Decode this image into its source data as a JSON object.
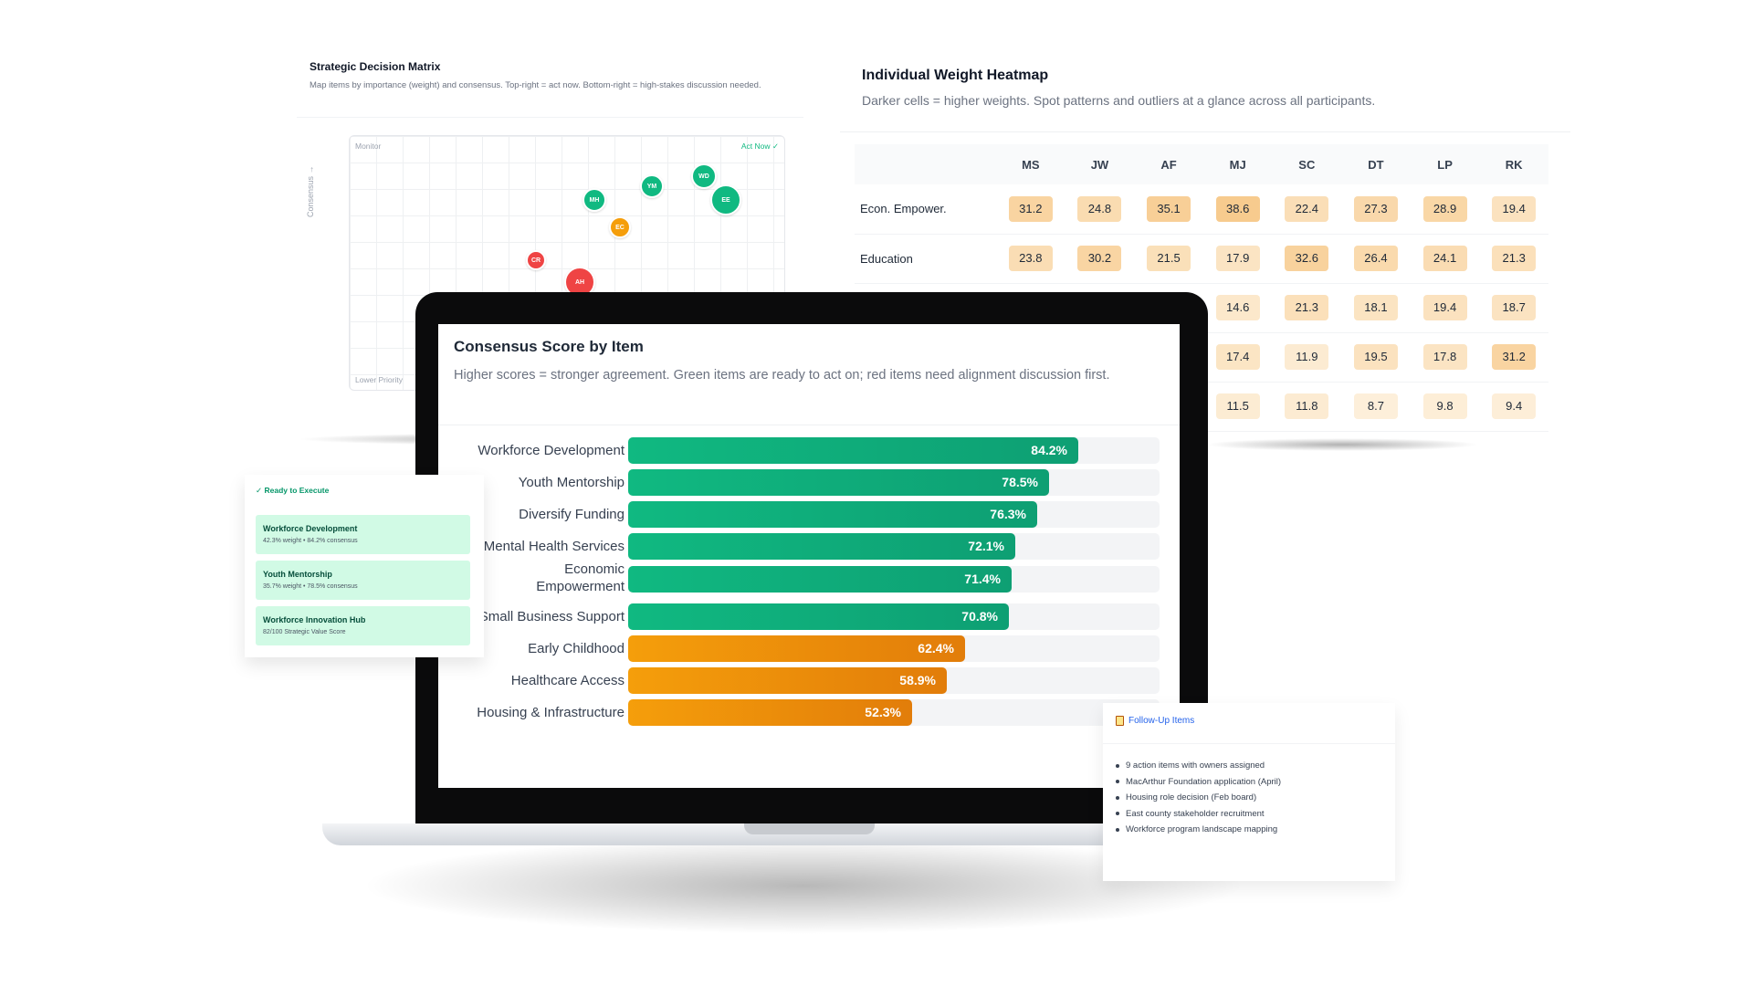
{
  "matrix": {
    "title": "Strategic Decision Matrix",
    "subtitle": "Map items by importance (weight) and consensus. Top-right = act now. Bottom-right = high-stakes discussion needed.",
    "y_axis": "Consensus →",
    "quadrants": {
      "top_left": "Monitor",
      "top_right": "Act Now ✓",
      "bottom_left": "Lower Priority"
    },
    "points": [
      {
        "label": "WD",
        "color": "green"
      },
      {
        "label": "YM",
        "color": "green"
      },
      {
        "label": "EE",
        "color": "green"
      },
      {
        "label": "MH",
        "color": "green"
      },
      {
        "label": "EC",
        "color": "orange"
      },
      {
        "label": "CR",
        "color": "red"
      },
      {
        "label": "AH",
        "color": "red"
      }
    ]
  },
  "heatmap": {
    "title": "Individual Weight Heatmap",
    "subtitle": "Darker cells = higher weights. Spot patterns and outliers at a glance across all participants.",
    "columns": [
      "MS",
      "JW",
      "AF",
      "MJ",
      "SC",
      "DT",
      "LP",
      "RK"
    ],
    "rows": [
      {
        "label": "Econ. Empower.",
        "values": [
          "31.2",
          "24.8",
          "35.1",
          "38.6",
          "22.4",
          "27.3",
          "28.9",
          "19.4"
        ]
      },
      {
        "label": "Education",
        "values": [
          "23.8",
          "30.2",
          "21.5",
          "17.9",
          "32.6",
          "26.4",
          "24.1",
          "21.3"
        ]
      },
      {
        "label": "",
        "values": [
          "",
          "",
          "",
          "14.6",
          "21.3",
          "18.1",
          "19.4",
          "18.7"
        ]
      },
      {
        "label": "",
        "values": [
          "",
          "",
          "",
          "17.4",
          "11.9",
          "19.5",
          "17.8",
          "31.2"
        ]
      },
      {
        "label": "",
        "values": [
          "",
          "",
          "",
          "11.5",
          "11.8",
          "8.7",
          "9.8",
          "9.4"
        ]
      }
    ]
  },
  "consensus": {
    "title": "Consensus Score by Item",
    "subtitle": "Higher scores = stronger agreement. Green items are ready to act on; red items need alignment discussion first.",
    "items": [
      {
        "label": "Workforce Development",
        "value": "84.2%",
        "pct": 84.2,
        "color": "green"
      },
      {
        "label": "Youth Mentorship",
        "value": "78.5%",
        "pct": 78.5,
        "color": "green"
      },
      {
        "label": "Diversify Funding",
        "value": "76.3%",
        "pct": 76.3,
        "color": "green"
      },
      {
        "label": "Mental Health Services",
        "value": "72.1%",
        "pct": 72.1,
        "color": "green"
      },
      {
        "label": "Economic Empowerment",
        "value": "71.4%",
        "pct": 71.4,
        "color": "green"
      },
      {
        "label": "Small Business Support",
        "value": "70.8%",
        "pct": 70.8,
        "color": "green"
      },
      {
        "label": "Early Childhood",
        "value": "62.4%",
        "pct": 62.4,
        "color": "orange"
      },
      {
        "label": "Healthcare Access",
        "value": "58.9%",
        "pct": 58.9,
        "color": "orange"
      },
      {
        "label": "Housing & Infrastructure",
        "value": "52.3%",
        "pct": 52.3,
        "color": "orange"
      }
    ]
  },
  "ready": {
    "heading": "✓ Ready to Execute",
    "items": [
      {
        "name": "Workforce Development",
        "meta": "42.3% weight • 84.2% consensus"
      },
      {
        "name": "Youth Mentorship",
        "meta": "35.7% weight • 78.5% consensus"
      },
      {
        "name": "Workforce Innovation Hub",
        "meta": "82/100 Strategic Value Score"
      }
    ]
  },
  "followup": {
    "heading": "Follow-Up Items",
    "items": [
      "9 action items with owners assigned",
      "MacArthur Foundation application (April)",
      "Housing role decision (Feb board)",
      "East county stakeholder recruitment",
      "Workforce program landscape mapping"
    ]
  },
  "colors": {
    "green": "#10b981",
    "orange": "#f59e0b",
    "red": "#ef4444",
    "heat_low": "#fdf0dc",
    "heat_high": "#f7c98a"
  }
}
